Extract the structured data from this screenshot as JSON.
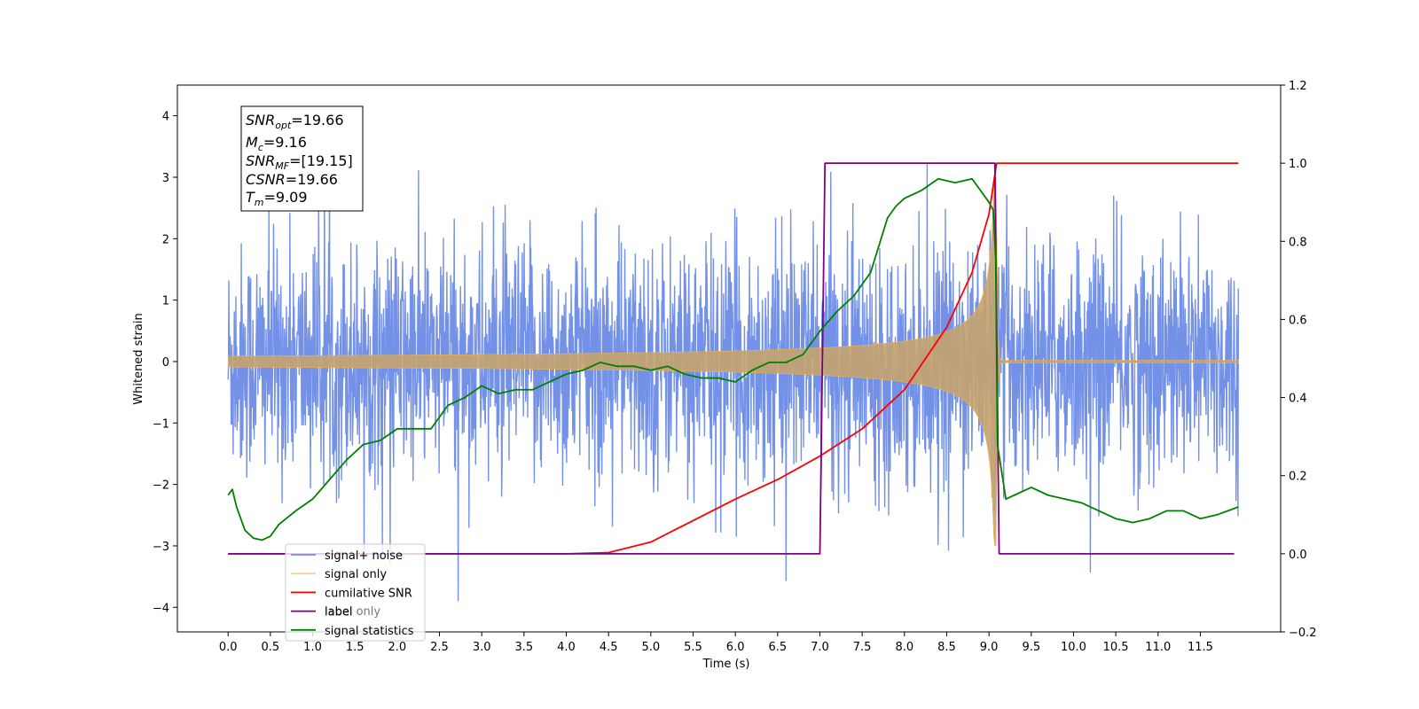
{
  "chart_data": {
    "type": "line",
    "xlabel": "Time (s)",
    "ylabel": "Whitened strain",
    "xlim": [
      -0.6,
      12.45
    ],
    "ylim": [
      -4.4,
      4.5
    ],
    "y2lim": [
      -0.2,
      1.2
    ],
    "x_ticks": [
      "0.0",
      "0.5",
      "1.0",
      "1.5",
      "2.0",
      "2.5",
      "3.0",
      "3.5",
      "4.0",
      "4.5",
      "5.0",
      "5.5",
      "6.0",
      "6.5",
      "7.0",
      "7.5",
      "8.0",
      "8.5",
      "9.0",
      "9.5",
      "10.0",
      "10.5",
      "11.0",
      "11.5"
    ],
    "y_ticks": [
      "4",
      "3",
      "2",
      "1",
      "0",
      "−1",
      "−2",
      "−3",
      "−4"
    ],
    "y2_ticks": [
      "1.2",
      "1.0",
      "0.8",
      "0.6",
      "0.4",
      "0.2",
      "0.0",
      "−0.2"
    ],
    "legend_position": "lower-left",
    "annotation": {
      "snr_opt": {
        "sym": "SNR",
        "sub": "opt",
        "val": "=19.66"
      },
      "mc": {
        "sym": "M",
        "sub": "c",
        "val": "=9.16"
      },
      "snr_mf": {
        "sym": "SNR",
        "sub": "MF",
        "val": "=[19.15]"
      },
      "csnr": {
        "sym": "CSNR",
        "sub": "",
        "val": "=19.66"
      },
      "tm": {
        "sym": "T",
        "sub": "m",
        "val": "=9.09"
      }
    },
    "series": [
      {
        "name": "signal+ noise",
        "color": "#6b8be6",
        "axis": "left",
        "description": "whitened noise, amplitude ~±2.5, t 0–12"
      },
      {
        "name": "signal only",
        "color": "#f5b34a",
        "axis": "left",
        "description": "chirp growing toward merger at 9.09 s, peak ~±3"
      },
      {
        "name": "cumilative SNR",
        "color": "#ff0000",
        "axis": "right",
        "x": [
          0,
          4.0,
          4.5,
          5.0,
          5.5,
          6.0,
          6.5,
          7.0,
          7.5,
          8.0,
          8.5,
          8.8,
          9.0,
          9.09,
          9.1,
          11.95
        ],
        "y": [
          0,
          0,
          0.003,
          0.03,
          0.085,
          0.14,
          0.19,
          0.25,
          0.32,
          0.42,
          0.58,
          0.72,
          0.87,
          1.0,
          1.0,
          1.0
        ]
      },
      {
        "name": "label",
        "color": "#800080",
        "axis": "right",
        "x": [
          0,
          7.0,
          7.06,
          9.07,
          9.12,
          11.9
        ],
        "y": [
          0,
          0,
          1.0,
          1.0,
          0,
          0
        ]
      },
      {
        "name": "label only",
        "color": "#800080",
        "axis": "right",
        "hidden_under_legend": true
      },
      {
        "name": "signal statistics",
        "color": "#008000",
        "axis": "right",
        "x": [
          0,
          0.05,
          0.1,
          0.15,
          0.2,
          0.3,
          0.4,
          0.5,
          0.6,
          0.8,
          1.0,
          1.2,
          1.4,
          1.6,
          1.8,
          2.0,
          2.2,
          2.4,
          2.5,
          2.6,
          2.8,
          3.0,
          3.2,
          3.4,
          3.6,
          3.8,
          4.0,
          4.2,
          4.4,
          4.6,
          4.8,
          5.0,
          5.2,
          5.4,
          5.6,
          5.8,
          6.0,
          6.2,
          6.4,
          6.6,
          6.8,
          7.0,
          7.2,
          7.4,
          7.6,
          7.8,
          7.9,
          8.0,
          8.2,
          8.4,
          8.6,
          8.8,
          9.0,
          9.05,
          9.08,
          9.1,
          9.2,
          9.3,
          9.5,
          9.7,
          9.9,
          10.1,
          10.3,
          10.5,
          10.7,
          10.9,
          11.1,
          11.3,
          11.5,
          11.7,
          11.95
        ],
        "y": [
          0.15,
          0.165,
          0.12,
          0.09,
          0.06,
          0.04,
          0.035,
          0.045,
          0.075,
          0.11,
          0.14,
          0.19,
          0.24,
          0.28,
          0.29,
          0.32,
          0.32,
          0.32,
          0.35,
          0.38,
          0.4,
          0.43,
          0.41,
          0.42,
          0.42,
          0.44,
          0.46,
          0.47,
          0.49,
          0.48,
          0.48,
          0.47,
          0.48,
          0.46,
          0.45,
          0.45,
          0.44,
          0.47,
          0.49,
          0.49,
          0.51,
          0.57,
          0.62,
          0.66,
          0.72,
          0.86,
          0.89,
          0.91,
          0.93,
          0.96,
          0.95,
          0.96,
          0.9,
          0.88,
          0.75,
          0.28,
          0.14,
          0.15,
          0.17,
          0.15,
          0.14,
          0.13,
          0.11,
          0.09,
          0.08,
          0.09,
          0.11,
          0.11,
          0.09,
          0.1,
          0.12
        ]
      }
    ]
  }
}
